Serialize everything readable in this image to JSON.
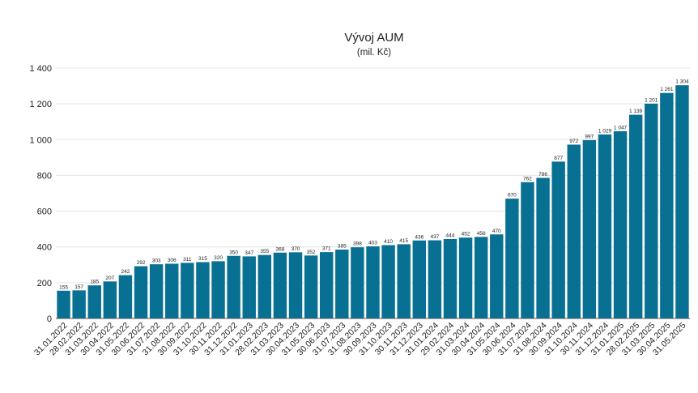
{
  "chart_data": {
    "type": "bar",
    "title": "Vývoj AUM",
    "subtitle": "(mil. Kč)",
    "xlabel": "",
    "ylabel": "",
    "ylim": [
      0,
      1400
    ],
    "yticks": [
      0,
      200,
      400,
      600,
      800,
      1000,
      1200,
      1400
    ],
    "ytick_labels": [
      "0",
      "200",
      "400",
      "600",
      "800",
      "1 000",
      "1 200",
      "1 400"
    ],
    "grid": true,
    "bar_color": "#087193",
    "categories": [
      "31.01.2022",
      "28.02.2022",
      "31.03.2022",
      "30.04.2022",
      "31.05.2022",
      "30.06.2022",
      "31.07.2022",
      "31.08.2022",
      "30.09.2022",
      "31.10.2022",
      "30.11.2022",
      "31.12.2022",
      "31.01.2023",
      "28.02.2023",
      "31.03.2023",
      "30.04.2023",
      "31.05.2023",
      "30.06.2023",
      "31.07.2023",
      "31.08.2023",
      "30.09.2023",
      "31.10.2023",
      "30.11.2023",
      "31.12.2023",
      "31.01.2024",
      "29.02.2024",
      "31.03.2024",
      "30.04.2024",
      "31.05.2024",
      "30.06.2024",
      "31.07.2024",
      "31.08.2024",
      "30.09.2024",
      "31.10.2024",
      "30.11.2024",
      "31.12.2024",
      "31.01.2025",
      "28.02.2025",
      "31.03.2025",
      "30.04.2025",
      "31.05.2025"
    ],
    "values": [
      155,
      157,
      185,
      207,
      242,
      292,
      303,
      306,
      311,
      315,
      320,
      350,
      347,
      355,
      368,
      370,
      352,
      371,
      385,
      398,
      403,
      410,
      415,
      436,
      437,
      444,
      452,
      456,
      470,
      670,
      762,
      786,
      877,
      972,
      997,
      1029,
      1047,
      1139,
      1201,
      1261,
      1304
    ],
    "value_labels": [
      "155",
      "157",
      "185",
      "207",
      "242",
      "292",
      "303",
      "306",
      "311",
      "315",
      "320",
      "350",
      "347",
      "355",
      "368",
      "370",
      "352",
      "371",
      "385",
      "398",
      "403",
      "410",
      "415",
      "436",
      "437",
      "444",
      "452",
      "456",
      "470",
      "670",
      "762",
      "786",
      "877",
      "972",
      "997",
      "1 029",
      "1 047",
      "1 139",
      "1 201",
      "1 261",
      "1 304"
    ]
  }
}
